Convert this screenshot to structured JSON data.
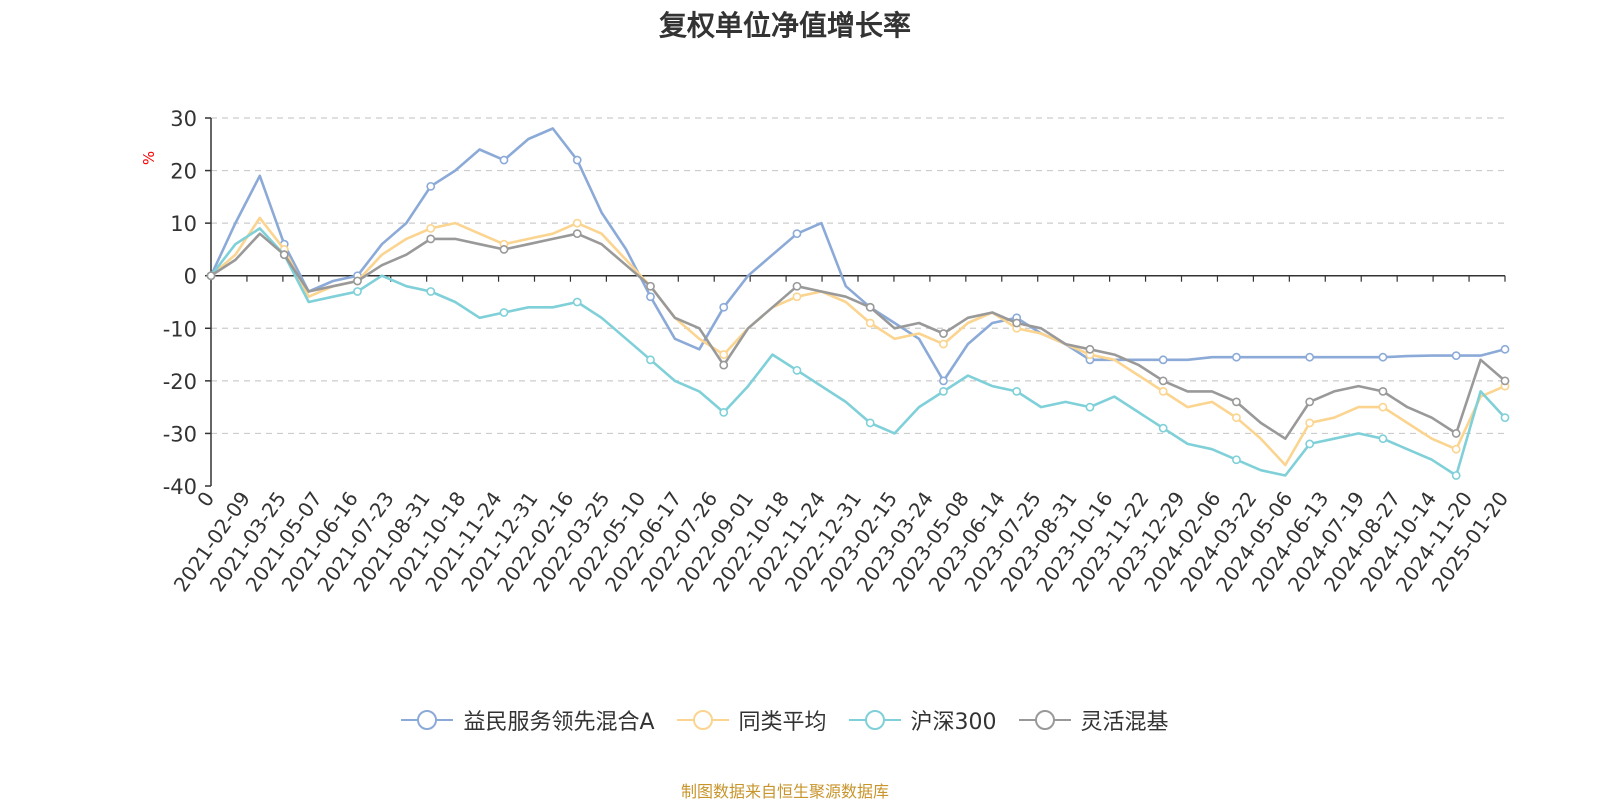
{
  "source_note": "制图数据来自恒生聚源数据库",
  "chart_data": {
    "type": "line",
    "title": "复权单位净值增长率",
    "ylabel": "%",
    "ylabel_color": "#ff0000",
    "ylim": [
      -40,
      30
    ],
    "yticks": [
      30,
      20,
      10,
      0,
      -10,
      -20,
      -30,
      -40
    ],
    "grid": true,
    "legend_position": "bottom",
    "x_tick_labels": [
      "0",
      "2021-02-09",
      "2021-03-25",
      "2021-05-07",
      "2021-06-16",
      "2021-07-23",
      "2021-08-31",
      "2021-10-18",
      "2021-11-24",
      "2021-12-31",
      "2022-02-16",
      "2022-03-25",
      "2022-05-10",
      "2022-06-17",
      "2022-07-26",
      "2022-09-01",
      "2022-10-18",
      "2022-11-24",
      "2022-12-31",
      "2023-02-15",
      "2023-03-24",
      "2023-05-08",
      "2023-06-14",
      "2023-07-25",
      "2023-08-31",
      "2023-10-16",
      "2023-11-22",
      "2023-12-29",
      "2024-02-06",
      "2024-03-22",
      "2024-05-06",
      "2024-06-13",
      "2024-07-19",
      "2024-08-27",
      "2024-10-14",
      "2024-11-20",
      "2025-01-20"
    ],
    "series": [
      {
        "name": "益民服务领先混合A",
        "color": "#8caad8",
        "values": [
          0,
          10,
          19,
          6,
          -3,
          -1,
          0,
          6,
          10,
          17,
          20,
          24,
          22,
          26,
          28,
          22,
          12,
          5,
          -4,
          -12,
          -14,
          -6,
          0,
          4,
          8,
          10,
          -2,
          -6,
          -9,
          -12,
          -20,
          -13,
          -9,
          -8,
          -11,
          -13,
          -16,
          -16,
          -16,
          -16,
          -16,
          -15.5,
          -15.5,
          -15.5,
          -15.5,
          -15.5,
          -15.5,
          -15.5,
          -15.5,
          -15.3,
          -15.2,
          -15.2,
          -15.2,
          -14
        ]
      },
      {
        "name": "同类平均",
        "color": "#fbd490",
        "values": [
          0,
          4,
          11,
          5,
          -4,
          -2,
          -1,
          4,
          7,
          9,
          10,
          8,
          6,
          7,
          8,
          10,
          8,
          3,
          -2,
          -8,
          -12,
          -15,
          -10,
          -6,
          -4,
          -3,
          -5,
          -9,
          -12,
          -11,
          -13,
          -9,
          -7,
          -10,
          -11,
          -13,
          -15,
          -16,
          -19,
          -22,
          -25,
          -24,
          -27,
          -31,
          -36,
          -28,
          -27,
          -25,
          -25,
          -28,
          -31,
          -33,
          -23,
          -21
        ]
      },
      {
        "name": "沪深300",
        "color": "#7fd0d8",
        "values": [
          0,
          6,
          9,
          4,
          -5,
          -4,
          -3,
          0,
          -2,
          -3,
          -5,
          -8,
          -7,
          -6,
          -6,
          -5,
          -8,
          -12,
          -16,
          -20,
          -22,
          -26,
          -21,
          -15,
          -18,
          -21,
          -24,
          -28,
          -30,
          -25,
          -22,
          -19,
          -21,
          -22,
          -25,
          -24,
          -25,
          -23,
          -26,
          -29,
          -32,
          -33,
          -35,
          -37,
          -38,
          -32,
          -31,
          -30,
          -31,
          -33,
          -35,
          -38,
          -22,
          -27
        ]
      },
      {
        "name": "灵活混基",
        "color": "#999999",
        "values": [
          0,
          3,
          8,
          4,
          -3,
          -2,
          -1,
          2,
          4,
          7,
          7,
          6,
          5,
          6,
          7,
          8,
          6,
          2,
          -2,
          -8,
          -10,
          -17,
          -10,
          -6,
          -2,
          -3,
          -4,
          -6,
          -10,
          -9,
          -11,
          -8,
          -7,
          -9,
          -10,
          -13,
          -14,
          -15,
          -17,
          -20,
          -22,
          -22,
          -24,
          -28,
          -31,
          -24,
          -22,
          -21,
          -22,
          -25,
          -27,
          -30,
          -16,
          -20
        ]
      }
    ]
  }
}
